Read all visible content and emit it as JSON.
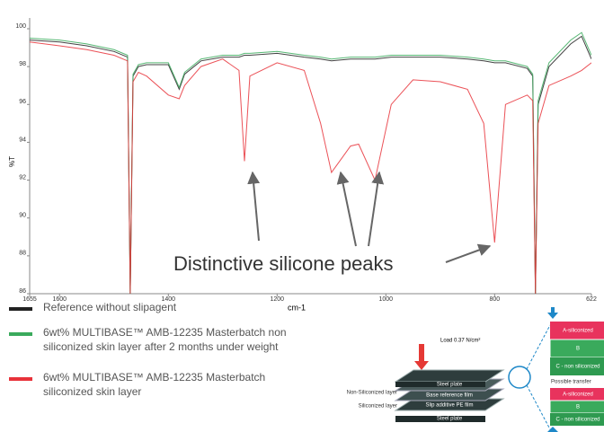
{
  "chart_data": {
    "type": "line",
    "y_label": "%T",
    "x_label": "cm-1",
    "annotation": "Distinctive silicone peaks",
    "xlim": [
      1655,
      622
    ],
    "ylim": [
      86,
      100
    ],
    "xticks": [
      1655,
      1600,
      1400,
      1200,
      1000,
      800,
      622
    ],
    "yticks": [
      86,
      88,
      90,
      92,
      94,
      96,
      98,
      100
    ],
    "x": [
      1655,
      1600,
      1550,
      1500,
      1475,
      1470,
      1465,
      1455,
      1440,
      1400,
      1380,
      1370,
      1340,
      1300,
      1270,
      1260,
      1250,
      1200,
      1150,
      1120,
      1100,
      1065,
      1050,
      1020,
      990,
      950,
      900,
      850,
      820,
      800,
      780,
      740,
      730,
      725,
      720,
      700,
      660,
      640,
      622
    ],
    "series": [
      {
        "name": "Reference without slipagent",
        "color": "#222222",
        "values": [
          99.4,
          99.3,
          99.1,
          98.8,
          98.5,
          86,
          97.5,
          98,
          98.1,
          98.1,
          96.8,
          97.6,
          98.3,
          98.5,
          98.5,
          98.6,
          98.6,
          98.7,
          98.5,
          98.4,
          98.3,
          98.4,
          98.4,
          98.4,
          98.5,
          98.5,
          98.5,
          98.4,
          98.3,
          98.2,
          98.2,
          97.9,
          97.5,
          86,
          96,
          98,
          99.2,
          99.6,
          98.4
        ]
      },
      {
        "name": "6wt% MULTIBASE™ AMB-12235 Masterbatch non siliconized skin layer after 2 months under weight",
        "color": "#3aaa5c",
        "values": [
          99.5,
          99.4,
          99.2,
          98.9,
          98.6,
          86,
          97.6,
          98.1,
          98.2,
          98.2,
          96.9,
          97.7,
          98.4,
          98.6,
          98.6,
          98.7,
          98.7,
          98.8,
          98.6,
          98.5,
          98.4,
          98.5,
          98.5,
          98.5,
          98.6,
          98.6,
          98.6,
          98.5,
          98.4,
          98.3,
          98.3,
          98,
          97.6,
          86,
          96.2,
          98.2,
          99.4,
          99.8,
          98.6
        ]
      },
      {
        "name": "6wt% MULTIBASE™ AMB-12235 Masterbatch siliconized skin layer",
        "color": "#e8323a",
        "values": [
          99.3,
          99.1,
          98.9,
          98.6,
          98.3,
          86,
          97.2,
          97.7,
          97.5,
          96.5,
          96.3,
          97,
          98,
          98.4,
          97.8,
          93,
          97.5,
          98.2,
          97.8,
          95,
          92.4,
          93.8,
          93.9,
          92,
          96,
          97.3,
          97.2,
          96.8,
          95,
          88.7,
          96,
          96.5,
          96.2,
          86,
          95,
          97,
          97.5,
          97.8,
          98.2
        ]
      }
    ]
  },
  "diagram": {
    "load": "Load 0.37 N/cm²",
    "plate_top": "Steel plate",
    "film_base": "Base reference film",
    "film_slip": "Slip additive PE film",
    "plate_bottom": "Steel plate",
    "label_non": "Non-Siliconized layer",
    "label_sil": "Siliconized layer",
    "upper_a": "A-siliconized",
    "upper_b": "B",
    "upper_c": "C - non siliconized",
    "transfer": "Possible transfer",
    "lower_a": "A-siliconized",
    "lower_b": "B",
    "lower_c": "C - non siliconized"
  }
}
